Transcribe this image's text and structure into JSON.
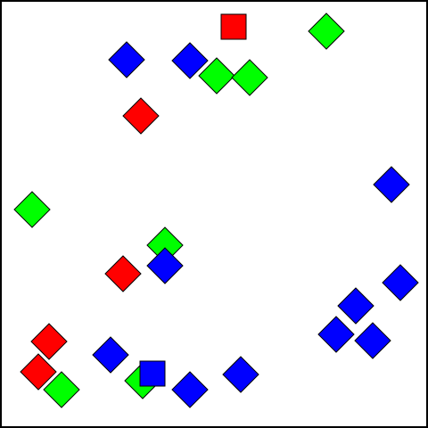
{
  "board": {
    "background": "#ffffff",
    "border_color": "#000000"
  },
  "colors": {
    "red": "#ff0000",
    "green": "#00ff00",
    "blue": "#0000ff",
    "outline": "#000000"
  },
  "pieces": [
    {
      "id": "red-square-1",
      "color": "red",
      "shape": "square"
    },
    {
      "id": "green-diamond-1",
      "color": "green",
      "shape": "diamond"
    },
    {
      "id": "blue-diamond-1",
      "color": "blue",
      "shape": "diamond"
    },
    {
      "id": "blue-diamond-2",
      "color": "blue",
      "shape": "diamond"
    },
    {
      "id": "green-diamond-2",
      "color": "green",
      "shape": "diamond"
    },
    {
      "id": "green-diamond-3",
      "color": "green",
      "shape": "diamond"
    },
    {
      "id": "red-diamond-1",
      "color": "red",
      "shape": "diamond"
    },
    {
      "id": "blue-diamond-3",
      "color": "blue",
      "shape": "diamond"
    },
    {
      "id": "green-diamond-4",
      "color": "green",
      "shape": "diamond"
    },
    {
      "id": "green-diamond-5",
      "color": "green",
      "shape": "diamond"
    },
    {
      "id": "red-diamond-2",
      "color": "red",
      "shape": "diamond"
    },
    {
      "id": "blue-diamond-4",
      "color": "blue",
      "shape": "diamond"
    },
    {
      "id": "blue-diamond-5",
      "color": "blue",
      "shape": "diamond"
    },
    {
      "id": "blue-diamond-6",
      "color": "blue",
      "shape": "diamond"
    },
    {
      "id": "red-diamond-3",
      "color": "red",
      "shape": "diamond"
    },
    {
      "id": "blue-diamond-7",
      "color": "blue",
      "shape": "diamond"
    },
    {
      "id": "blue-diamond-8",
      "color": "blue",
      "shape": "diamond"
    },
    {
      "id": "red-diamond-4",
      "color": "red",
      "shape": "diamond"
    },
    {
      "id": "green-diamond-6",
      "color": "green",
      "shape": "diamond"
    },
    {
      "id": "blue-diamond-9",
      "color": "blue",
      "shape": "diamond"
    },
    {
      "id": "green-diamond-7",
      "color": "green",
      "shape": "diamond"
    },
    {
      "id": "blue-square-1",
      "color": "blue",
      "shape": "square"
    },
    {
      "id": "blue-diamond-10",
      "color": "blue",
      "shape": "diamond"
    },
    {
      "id": "blue-diamond-11",
      "color": "blue",
      "shape": "diamond"
    }
  ]
}
